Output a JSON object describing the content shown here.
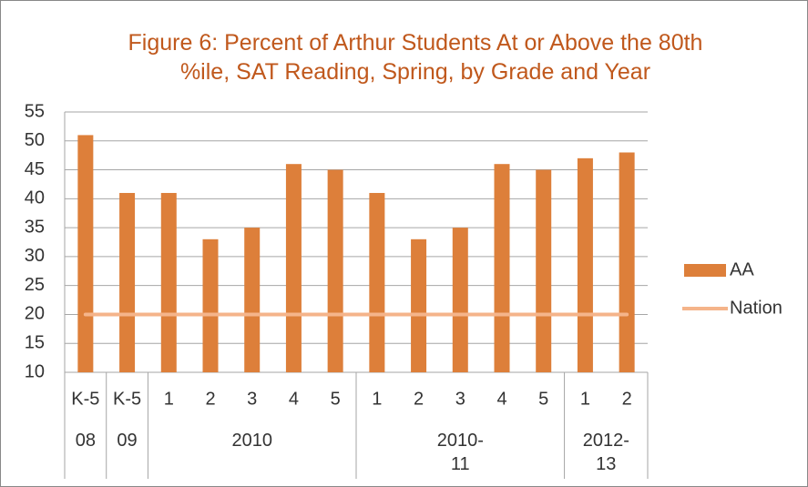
{
  "chart_data": {
    "type": "bar",
    "title": "Figure 6: Percent of Arthur Students At or Above the 80th %ile, SAT Reading, Spring, by Grade and Year",
    "category_groups": [
      {
        "name": "08",
        "categories": [
          "K-5"
        ]
      },
      {
        "name": "09",
        "categories": [
          "K-5"
        ]
      },
      {
        "name": "2010",
        "categories": [
          "1",
          "2",
          "3",
          "4",
          "5"
        ]
      },
      {
        "name": "2010-11",
        "categories": [
          "1",
          "2",
          "3",
          "4",
          "5"
        ]
      },
      {
        "name": "2012-13",
        "categories": [
          "1",
          "2"
        ]
      }
    ],
    "series": [
      {
        "name": "AA",
        "type": "bar",
        "color": "#dd7f3a",
        "values": [
          51,
          41,
          41,
          33,
          35,
          46,
          45,
          41,
          33,
          35,
          46,
          45,
          47,
          48
        ]
      },
      {
        "name": "Nation",
        "type": "line",
        "color": "#f5b48a",
        "values": [
          20,
          20,
          20,
          20,
          20,
          20,
          20,
          20,
          20,
          20,
          20,
          20,
          20,
          20
        ]
      }
    ],
    "ylim": [
      10,
      55
    ],
    "yticks": [
      10,
      15,
      20,
      25,
      30,
      35,
      40,
      45,
      50,
      55
    ],
    "grid": true,
    "legend": "right"
  }
}
